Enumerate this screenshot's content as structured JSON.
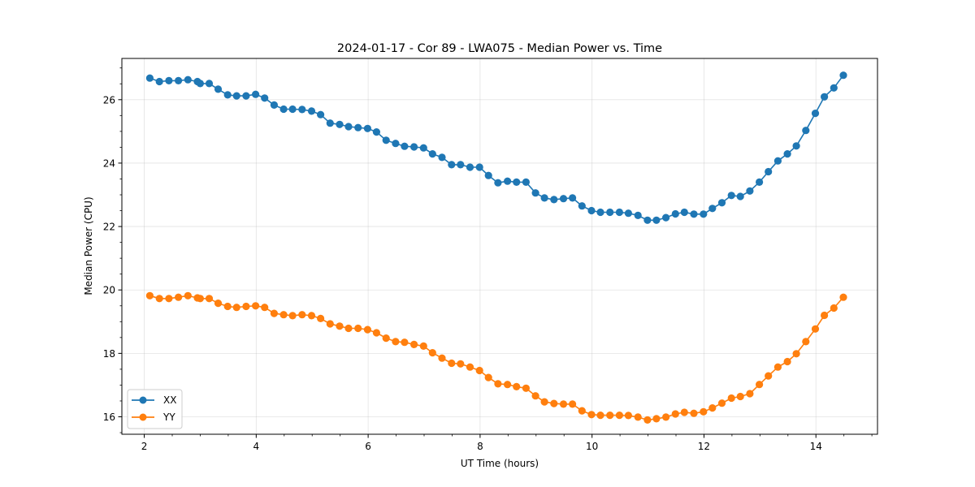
{
  "chart_data": {
    "type": "line",
    "title": "2024-01-17 - Cor 89 - LWA075 - Median Power vs. Time",
    "xlabel": "UT Time (hours)",
    "ylabel": "Median Power (CPU)",
    "xlim": [
      1.6,
      15.1
    ],
    "ylim": [
      15.45,
      27.3
    ],
    "xticks": [
      2,
      4,
      6,
      8,
      10,
      12,
      14
    ],
    "xtick_labels": [
      "2",
      "4",
      "6",
      "8",
      "10",
      "12",
      "14"
    ],
    "yticks": [
      16,
      18,
      20,
      22,
      24,
      26
    ],
    "ytick_labels": [
      "16",
      "18",
      "20",
      "22",
      "24",
      "26"
    ],
    "grid": true,
    "legend_position": "lower-left",
    "x": [
      2.1,
      2.27,
      2.44,
      2.61,
      2.78,
      2.95,
      3.0,
      3.16,
      3.32,
      3.49,
      3.65,
      3.82,
      3.99,
      4.15,
      4.32,
      4.49,
      4.65,
      4.82,
      4.99,
      5.15,
      5.32,
      5.49,
      5.65,
      5.82,
      5.99,
      6.15,
      6.32,
      6.49,
      6.65,
      6.82,
      6.99,
      7.15,
      7.32,
      7.49,
      7.65,
      7.82,
      7.99,
      8.15,
      8.32,
      8.49,
      8.65,
      8.82,
      8.99,
      9.15,
      9.32,
      9.49,
      9.65,
      9.82,
      9.99,
      10.15,
      10.32,
      10.49,
      10.65,
      10.82,
      10.99,
      11.15,
      11.32,
      11.49,
      11.65,
      11.82,
      11.99,
      12.15,
      12.32,
      12.49,
      12.65,
      12.82,
      12.99,
      13.15,
      13.32,
      13.49,
      13.65,
      13.82,
      13.99,
      14.15,
      14.32,
      14.49
    ],
    "series": [
      {
        "name": "XX",
        "color": "#1f77b4",
        "values": [
          26.68,
          26.57,
          26.6,
          26.6,
          26.63,
          26.57,
          26.51,
          26.51,
          26.33,
          26.15,
          26.12,
          26.12,
          26.17,
          26.05,
          25.83,
          25.7,
          25.7,
          25.69,
          25.64,
          25.53,
          25.26,
          25.22,
          25.15,
          25.12,
          25.09,
          24.98,
          24.72,
          24.62,
          24.53,
          24.51,
          24.48,
          24.29,
          24.18,
          23.95,
          23.95,
          23.87,
          23.87,
          23.61,
          23.38,
          23.43,
          23.4,
          23.4,
          23.06,
          22.9,
          22.85,
          22.88,
          22.9,
          22.65,
          22.5,
          22.45,
          22.45,
          22.45,
          22.42,
          22.35,
          22.2,
          22.2,
          22.28,
          22.4,
          22.45,
          22.39,
          22.39,
          22.57,
          22.75,
          22.98,
          22.95,
          23.12,
          23.4,
          23.73,
          24.07,
          24.29,
          24.54,
          25.03,
          25.57,
          26.09,
          26.37,
          26.77
        ]
      },
      {
        "name": "YY",
        "color": "#ff7f0e",
        "values": [
          19.82,
          19.73,
          19.73,
          19.77,
          19.82,
          19.75,
          19.73,
          19.73,
          19.58,
          19.48,
          19.45,
          19.48,
          19.5,
          19.45,
          19.26,
          19.22,
          19.19,
          19.22,
          19.19,
          19.1,
          18.93,
          18.86,
          18.79,
          18.79,
          18.75,
          18.65,
          18.48,
          18.37,
          18.35,
          18.28,
          18.23,
          18.02,
          17.85,
          17.69,
          17.67,
          17.57,
          17.46,
          17.24,
          17.04,
          17.02,
          16.95,
          16.9,
          16.66,
          16.47,
          16.42,
          16.4,
          16.4,
          16.19,
          16.07,
          16.05,
          16.05,
          16.05,
          16.04,
          15.99,
          15.9,
          15.94,
          15.99,
          16.09,
          16.14,
          16.11,
          16.16,
          16.28,
          16.43,
          16.59,
          16.64,
          16.73,
          17.02,
          17.29,
          17.57,
          17.74,
          17.99,
          18.37,
          18.77,
          19.2,
          19.43,
          19.77
        ]
      }
    ]
  }
}
